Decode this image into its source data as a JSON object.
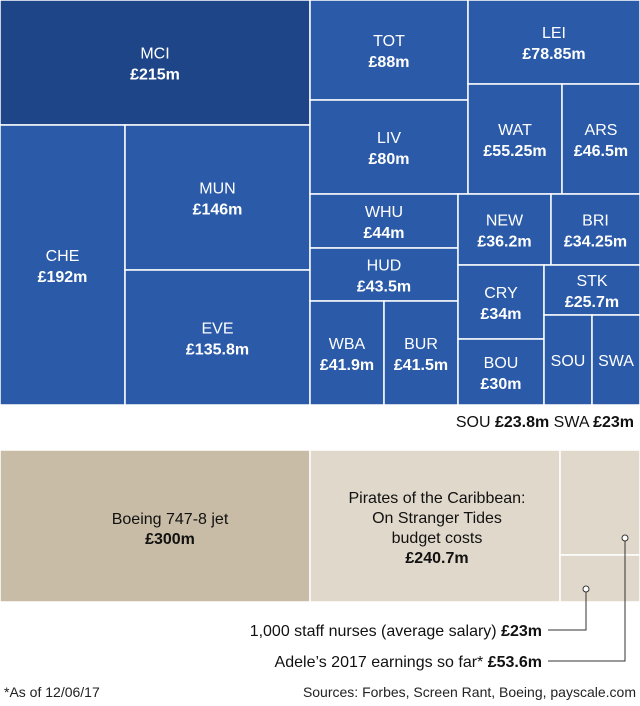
{
  "chart_data": [
    {
      "type": "treemap",
      "unit": "£m",
      "colors": {
        "default": "#2a5aa8",
        "highlight": "#1e4588",
        "stroke": "#ffffff"
      },
      "items": [
        {
          "name": "MCI",
          "value": 215,
          "label": "£215m",
          "highlight": true
        },
        {
          "name": "CHE",
          "value": 192,
          "label": "£192m"
        },
        {
          "name": "MUN",
          "value": 146,
          "label": "£146m"
        },
        {
          "name": "EVE",
          "value": 135.8,
          "label": "£135.8m"
        },
        {
          "name": "TOT",
          "value": 88,
          "label": "£88m"
        },
        {
          "name": "LIV",
          "value": 80,
          "label": "£80m"
        },
        {
          "name": "LEI",
          "value": 78.85,
          "label": "£78.85m"
        },
        {
          "name": "WAT",
          "value": 55.25,
          "label": "£55.25m"
        },
        {
          "name": "ARS",
          "value": 46.5,
          "label": "£46.5m"
        },
        {
          "name": "WHU",
          "value": 44,
          "label": "£44m"
        },
        {
          "name": "HUD",
          "value": 43.5,
          "label": "£43.5m"
        },
        {
          "name": "WBA",
          "value": 41.9,
          "label": "£41.9m"
        },
        {
          "name": "BUR",
          "value": 41.5,
          "label": "£41.5m"
        },
        {
          "name": "NEW",
          "value": 36.2,
          "label": "£36.2m"
        },
        {
          "name": "BRI",
          "value": 34.25,
          "label": "£34.25m"
        },
        {
          "name": "CRY",
          "value": 34,
          "label": "£34m"
        },
        {
          "name": "BOU",
          "value": 30,
          "label": "£30m"
        },
        {
          "name": "STK",
          "value": 25.7,
          "label": "£25.7m"
        },
        {
          "name": "SOU",
          "value": 23.8,
          "label": "£23.8m"
        },
        {
          "name": "SWA",
          "value": 23,
          "label": "£23m"
        }
      ],
      "small_note": [
        {
          "name": "SOU",
          "label": "£23.8m"
        },
        {
          "name": "SWA",
          "label": "£23m"
        }
      ]
    },
    {
      "type": "treemap",
      "unit": "£m",
      "colors": {
        "first": "#c8bca6",
        "others": "#e0d9cb",
        "stroke": "#ffffff",
        "leader": "#333333"
      },
      "items": [
        {
          "name": "Boeing 747-8 jet",
          "value": 300,
          "label": "£300m"
        },
        {
          "name_lines": [
            "Pirates of the Caribbean:",
            "On Stranger Tides",
            "budget costs"
          ],
          "value": 240.7,
          "label": "£240.7m"
        },
        {
          "name": "Adele’s 2017 earnings so far*",
          "value": 53.6,
          "label": "£53.6m"
        },
        {
          "name": "1,000 staff nurses (average salary)",
          "value": 23,
          "label": "£23m"
        }
      ]
    }
  ],
  "footnote": "*As of 12/06/17",
  "sources": "Sources: Forbes, Screen Rant, Boeing, payscale.com"
}
